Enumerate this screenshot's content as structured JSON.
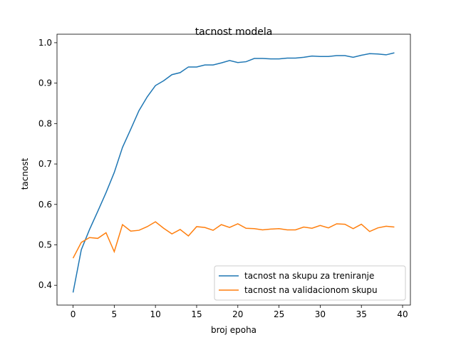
{
  "chart_data": {
    "type": "line",
    "title": "tacnost modela",
    "x_label": "broj epoha",
    "y_label": "tacnost",
    "x": [
      0,
      1,
      2,
      3,
      4,
      5,
      6,
      7,
      8,
      9,
      10,
      11,
      12,
      13,
      14,
      15,
      16,
      17,
      18,
      19,
      20,
      21,
      22,
      23,
      24,
      25,
      26,
      27,
      28,
      29,
      30,
      31,
      32,
      33,
      34,
      35,
      36,
      37,
      38,
      39
    ],
    "series": [
      {
        "name": "tacnost na skupu za treniranje",
        "color": "#1f77b4",
        "values": [
          0.382,
          0.488,
          0.538,
          0.583,
          0.629,
          0.679,
          0.741,
          0.786,
          0.832,
          0.866,
          0.894,
          0.906,
          0.921,
          0.926,
          0.94,
          0.94,
          0.945,
          0.945,
          0.95,
          0.956,
          0.951,
          0.953,
          0.961,
          0.961,
          0.96,
          0.96,
          0.962,
          0.962,
          0.964,
          0.967,
          0.966,
          0.966,
          0.968,
          0.968,
          0.964,
          0.969,
          0.973,
          0.972,
          0.97,
          0.975
        ]
      },
      {
        "name": "tacnost na validacionom skupu",
        "color": "#ff7f0e",
        "values": [
          0.467,
          0.506,
          0.518,
          0.516,
          0.53,
          0.483,
          0.55,
          0.534,
          0.536,
          0.545,
          0.557,
          0.541,
          0.527,
          0.538,
          0.522,
          0.545,
          0.543,
          0.536,
          0.55,
          0.543,
          0.552,
          0.541,
          0.54,
          0.537,
          0.539,
          0.54,
          0.537,
          0.537,
          0.544,
          0.541,
          0.548,
          0.542,
          0.552,
          0.551,
          0.54,
          0.551,
          0.533,
          0.542,
          0.546,
          0.544
        ]
      }
    ],
    "xlim": [
      -1.95,
      40.95
    ],
    "ylim": [
      0.351,
      1.021
    ],
    "xticks": [
      0,
      5,
      10,
      15,
      20,
      25,
      30,
      35,
      40
    ],
    "yticks": [
      0.4,
      0.5,
      0.6,
      0.7,
      0.8,
      0.9,
      {
        "value": 1,
        "label": "1.0"
      }
    ],
    "legend": "lower right"
  }
}
